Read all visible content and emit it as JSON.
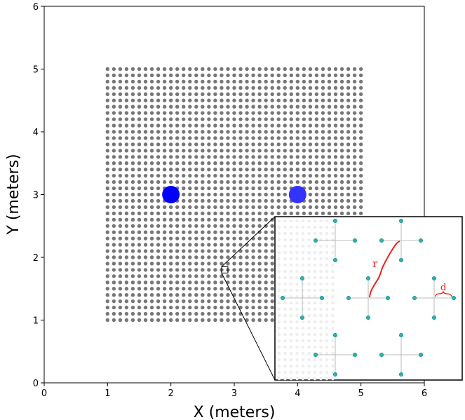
{
  "chart_data": {
    "type": "scatter",
    "xlabel": "X (meters)",
    "ylabel": "Y (meters)",
    "xlim": [
      0,
      6
    ],
    "ylim": [
      0,
      6
    ],
    "xticks": [
      "0",
      "1",
      "2",
      "3",
      "4",
      "5",
      "6"
    ],
    "yticks": [
      "0",
      "1",
      "2",
      "3",
      "4",
      "5",
      "6"
    ],
    "grid": false,
    "series": [
      {
        "kind": "grid-points",
        "x_range": [
          1,
          5
        ],
        "y_range": [
          1,
          5
        ],
        "count_per_axis": 41,
        "color": "#777777"
      },
      {
        "kind": "sources",
        "points": [
          {
            "x": 2,
            "y": 3,
            "color": "#0000ff"
          },
          {
            "x": 4,
            "y": 3,
            "color": "#3333ff"
          }
        ]
      }
    ],
    "zoom_region": {
      "x": [
        2.8,
        2.9
      ],
      "y": [
        1.75,
        1.85
      ]
    },
    "inset": {
      "node_color": "#2ab3b0",
      "line_color": "#aaaaaa",
      "annotation_color": "#e8231d",
      "labels": {
        "r": "r",
        "d": "d"
      }
    }
  }
}
